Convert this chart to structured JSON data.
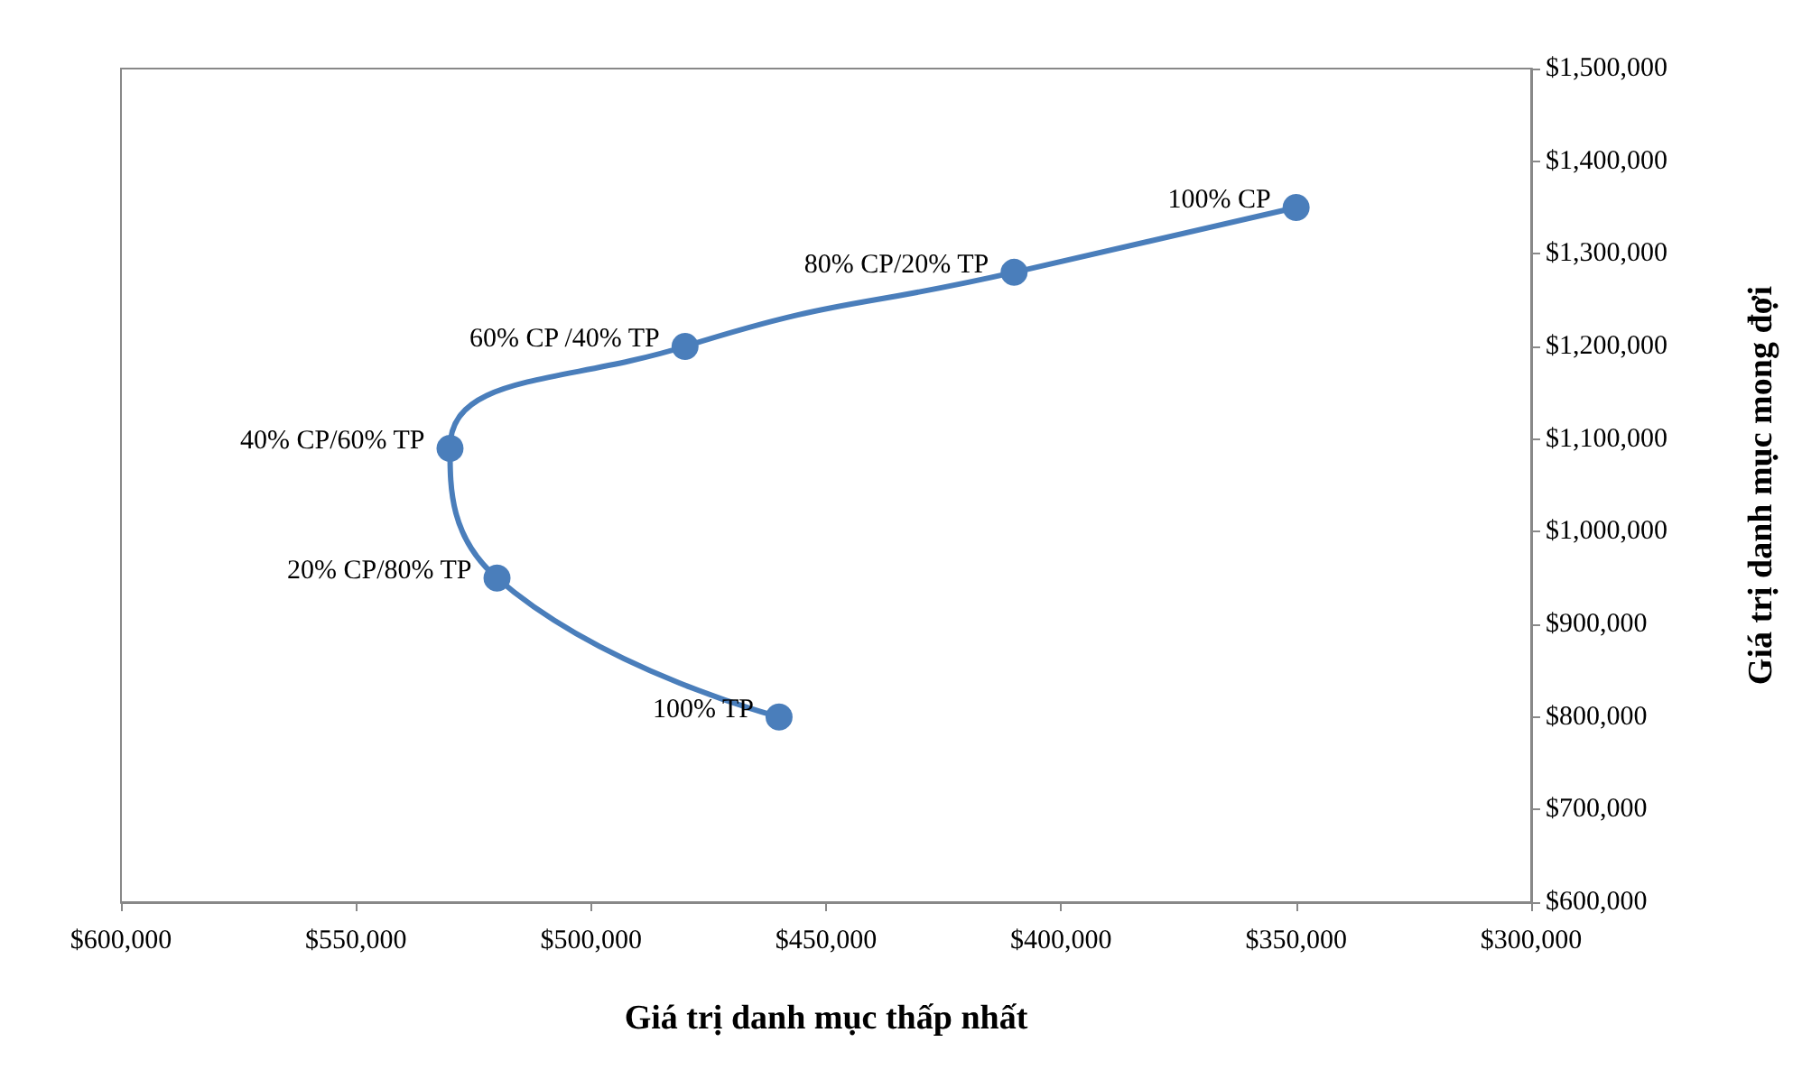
{
  "chart_data": {
    "type": "line",
    "xlabel": "Giá trị danh mục thấp nhất",
    "ylabel": "Giá trị danh mục mong đợi",
    "x": [
      460000,
      520000,
      530000,
      480000,
      410000,
      350000
    ],
    "series": [
      {
        "color": "#4a7ebb",
        "values": [
          800000,
          950000,
          1090000,
          1200000,
          1280000,
          1350000
        ]
      }
    ],
    "xlim": [
      600000,
      300000
    ],
    "xticks": [
      {
        "value": 600000,
        "label": "$600,000"
      },
      {
        "value": 550000,
        "label": "$550,000"
      },
      {
        "value": 500000,
        "label": "$500,000"
      },
      {
        "value": 450000,
        "label": "$450,000"
      },
      {
        "value": 400000,
        "label": "$400,000"
      },
      {
        "value": 350000,
        "label": "$350,000"
      },
      {
        "value": 300000,
        "label": "$300,000"
      }
    ],
    "ylim": [
      600000,
      1500000
    ],
    "yticks": [
      {
        "value": 600000,
        "label": "$600,000"
      },
      {
        "value": 700000,
        "label": "$700,000"
      },
      {
        "value": 800000,
        "label": "$800,000"
      },
      {
        "value": 900000,
        "label": "$900,000"
      },
      {
        "value": 1000000,
        "label": "$1,000,000"
      },
      {
        "value": 1100000,
        "label": "$1,100,000"
      },
      {
        "value": 1200000,
        "label": "$1,200,000"
      },
      {
        "value": 1300000,
        "label": "$1,300,000"
      },
      {
        "value": 1400000,
        "label": "$1,400,000"
      },
      {
        "value": 1500000,
        "label": "$1,500,000"
      }
    ],
    "annotations": [
      {
        "text": "100% TP",
        "x": 460000,
        "y": 800000
      },
      {
        "text": "20% CP/80% TP",
        "x": 520000,
        "y": 950000
      },
      {
        "text": "40% CP/60% TP",
        "x": 530000,
        "y": 1090000
      },
      {
        "text": "60% CP /40% TP",
        "x": 480000,
        "y": 1200000
      },
      {
        "text": "80% CP/20% TP",
        "x": 410000,
        "y": 1280000
      },
      {
        "text": "100% CP",
        "x": 350000,
        "y": 1350000
      }
    ],
    "grid": false,
    "marker": "circle",
    "line_style": "solid"
  }
}
